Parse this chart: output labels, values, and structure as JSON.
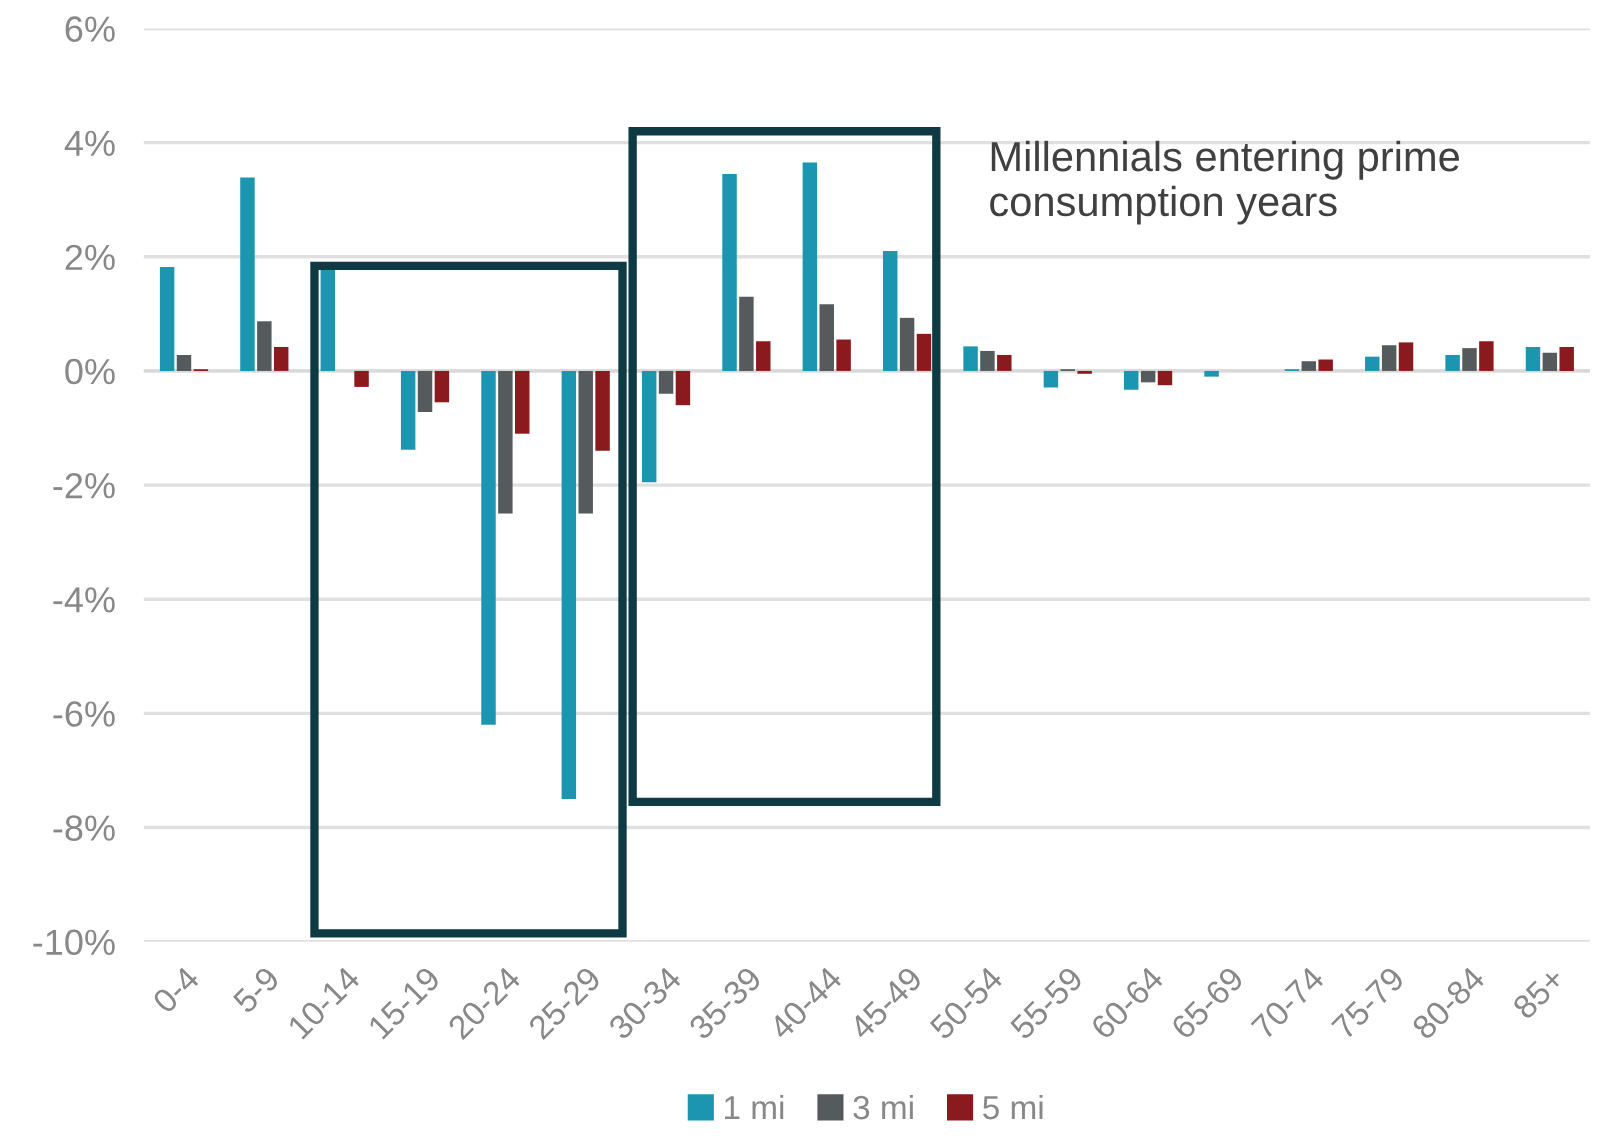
{
  "chart_data": {
    "type": "bar",
    "categories": [
      "0-4",
      "5-9",
      "10-14",
      "15-19",
      "20-24",
      "25-29",
      "30-34",
      "35-39",
      "40-44",
      "45-49",
      "50-54",
      "55-59",
      "60-64",
      "65-69",
      "70-74",
      "75-79",
      "80-84",
      "85+"
    ],
    "series": [
      {
        "name": "1 mi",
        "color": "#1b95b0",
        "values": [
          1.82,
          3.39,
          1.78,
          -1.38,
          -6.2,
          -7.5,
          -1.95,
          3.45,
          3.65,
          2.1,
          0.43,
          -0.29,
          -0.33,
          -0.1,
          0.03,
          0.25,
          0.28,
          0.42
        ]
      },
      {
        "name": "3 mi",
        "color": "#555b5c",
        "values": [
          0.28,
          0.87,
          0,
          -0.72,
          -2.5,
          -2.5,
          -0.4,
          1.3,
          1.17,
          0.93,
          0.35,
          0.03,
          -0.2,
          0,
          0.17,
          0.45,
          0.4,
          0.32
        ]
      },
      {
        "name": "5 mi",
        "color": "#8b1a1f",
        "values": [
          0.03,
          0.42,
          -0.28,
          -0.55,
          -1.1,
          -1.4,
          -0.6,
          0.52,
          0.55,
          0.65,
          0.28,
          -0.05,
          -0.25,
          null,
          0.2,
          0.5,
          0.52,
          0.42
        ]
      }
    ],
    "ylim": [
      -10,
      6
    ],
    "yticks": [
      {
        "value": -10,
        "label": "-10%"
      },
      {
        "value": -8,
        "label": "-8%"
      },
      {
        "value": -6,
        "label": "-6%"
      },
      {
        "value": -4,
        "label": "-4%"
      },
      {
        "value": -2,
        "label": "-2%"
      },
      {
        "value": 0,
        "label": "0%"
      },
      {
        "value": 2,
        "label": "2%"
      },
      {
        "value": 4,
        "label": "4%"
      },
      {
        "value": 6,
        "label": "6%"
      }
    ],
    "grid": "y",
    "legend": "bottom",
    "annotations": [
      "Millennials entering prime consumption years"
    ]
  }
}
